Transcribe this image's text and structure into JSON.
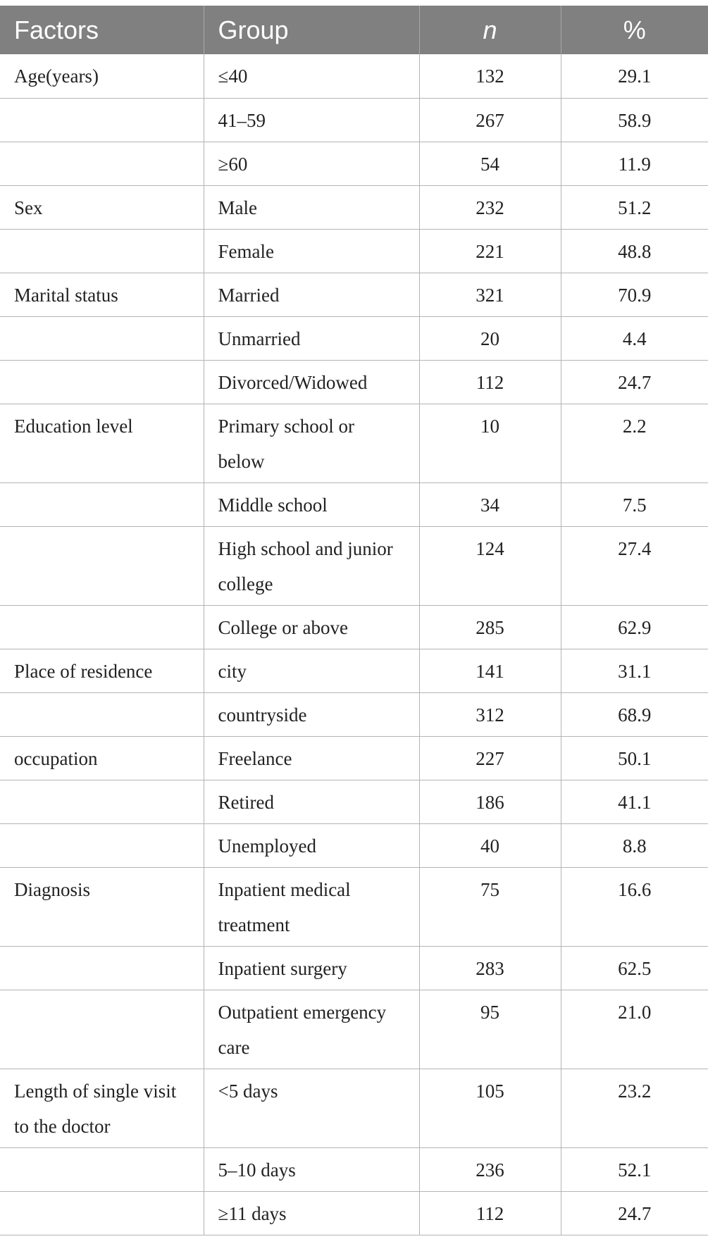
{
  "table": {
    "headers": [
      "Factors",
      "Group",
      "n",
      "%"
    ],
    "rows": [
      {
        "factor": "Age(years)",
        "group": "≤40",
        "n": "132",
        "pct": "29.1"
      },
      {
        "factor": "",
        "group": "41–59",
        "n": "267",
        "pct": "58.9"
      },
      {
        "factor": "",
        "group": "≥60",
        "n": "54",
        "pct": "11.9"
      },
      {
        "factor": "Sex",
        "group": "Male",
        "n": "232",
        "pct": "51.2"
      },
      {
        "factor": "",
        "group": "Female",
        "n": "221",
        "pct": "48.8"
      },
      {
        "factor": "Marital status",
        "group": "Married",
        "n": "321",
        "pct": "70.9"
      },
      {
        "factor": "",
        "group": "Unmarried",
        "n": "20",
        "pct": "4.4"
      },
      {
        "factor": "",
        "group": "Divorced/Widowed",
        "n": "112",
        "pct": "24.7"
      },
      {
        "factor": "Education level",
        "group": "Primary school or below",
        "n": "10",
        "pct": "2.2"
      },
      {
        "factor": "",
        "group": "Middle school",
        "n": "34",
        "pct": "7.5"
      },
      {
        "factor": "",
        "group": "High school and junior college",
        "n": "124",
        "pct": "27.4"
      },
      {
        "factor": "",
        "group": "College or above",
        "n": "285",
        "pct": "62.9"
      },
      {
        "factor": "Place of residence",
        "group": "city",
        "n": "141",
        "pct": "31.1"
      },
      {
        "factor": "",
        "group": "countryside",
        "n": "312",
        "pct": "68.9"
      },
      {
        "factor": "occupation",
        "group": "Freelance",
        "n": "227",
        "pct": "50.1"
      },
      {
        "factor": "",
        "group": "Retired",
        "n": "186",
        "pct": "41.1"
      },
      {
        "factor": "",
        "group": "Unemployed",
        "n": "40",
        "pct": "8.8"
      },
      {
        "factor": "Diagnosis",
        "group": "Inpatient medical treatment",
        "n": "75",
        "pct": "16.6"
      },
      {
        "factor": "",
        "group": "Inpatient surgery",
        "n": "283",
        "pct": "62.5"
      },
      {
        "factor": "",
        "group": "Outpatient emergency care",
        "n": "95",
        "pct": "21.0"
      },
      {
        "factor": "Length of single visit to the doctor",
        "group": "<5 days",
        "n": "105",
        "pct": "23.2"
      },
      {
        "factor": "",
        "group": "5–10 days",
        "n": "236",
        "pct": "52.1"
      },
      {
        "factor": "",
        "group": "≥11 days",
        "n": "112",
        "pct": "24.7"
      }
    ]
  }
}
